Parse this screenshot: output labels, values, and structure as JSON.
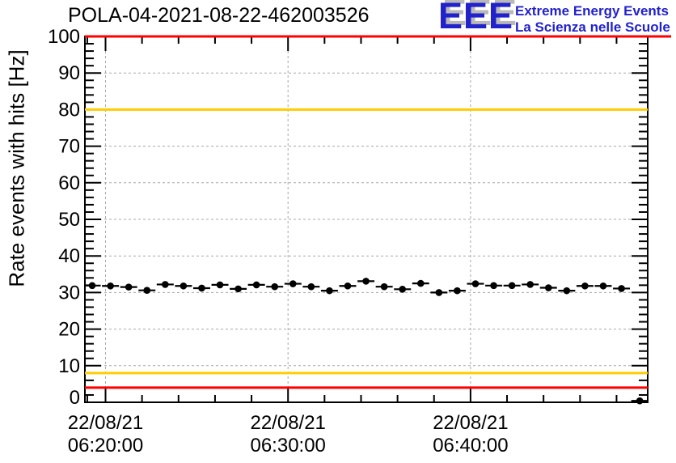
{
  "header": {
    "logo": {
      "acronym": "EEE",
      "line1": "Extreme Energy Events",
      "line2": "La Scienza nelle Scuole"
    }
  },
  "colors": {
    "alarm_red": "#ff0000",
    "warning_yellow": "#ffcc00",
    "logo_blue": "#2222cc",
    "grid_gray": "#a8a8a8"
  },
  "chart_data": {
    "type": "scatter",
    "title": "POLA-04-2021-08-22-462003526",
    "xlabel": "",
    "ylabel": "Rate events with hits [Hz]",
    "ylim": [
      0,
      100
    ],
    "grid": true,
    "y_major_ticks": [
      0,
      10,
      20,
      30,
      40,
      50,
      60,
      70,
      80,
      90,
      100
    ],
    "y_minor_step": 2,
    "x_ticks": [
      {
        "date": "22/08/21",
        "time": "06:20:00",
        "offset_min": 0
      },
      {
        "date": "22/08/21",
        "time": "06:30:00",
        "offset_min": 10
      },
      {
        "date": "22/08/21",
        "time": "06:40:00",
        "offset_min": 20
      }
    ],
    "x_minor_marks_min": [
      -1,
      2,
      4,
      6,
      8,
      12,
      14,
      16,
      18,
      22,
      24,
      26,
      28
    ],
    "bin_phase_min": 0.27,
    "thresholds": [
      {
        "value": 100,
        "color": "#ff0000",
        "full_width": true
      },
      {
        "value": 80,
        "color": "#ffcc00",
        "full_width": false
      },
      {
        "value": 8,
        "color": "#ffcc00",
        "full_width": false
      },
      {
        "value": 4,
        "color": "#ff0000",
        "full_width": false
      }
    ],
    "series": [
      {
        "name": "rate-events-with-hits",
        "marker": "filled-circle",
        "color": "#000000",
        "bin_width_min": 1,
        "points": [
          {
            "time": "06:19",
            "value": 31.9
          },
          {
            "time": "06:20",
            "value": 31.8
          },
          {
            "time": "06:21",
            "value": 31.5
          },
          {
            "time": "06:22",
            "value": 30.6
          },
          {
            "time": "06:23",
            "value": 32.2
          },
          {
            "time": "06:24",
            "value": 31.8
          },
          {
            "time": "06:25",
            "value": 31.2
          },
          {
            "time": "06:26",
            "value": 32.1
          },
          {
            "time": "06:27",
            "value": 31.0
          },
          {
            "time": "06:28",
            "value": 32.1
          },
          {
            "time": "06:29",
            "value": 31.6
          },
          {
            "time": "06:30",
            "value": 32.4
          },
          {
            "time": "06:31",
            "value": 31.6
          },
          {
            "time": "06:32",
            "value": 30.5
          },
          {
            "time": "06:33",
            "value": 31.8
          },
          {
            "time": "06:34",
            "value": 33.1
          },
          {
            "time": "06:35",
            "value": 31.6
          },
          {
            "time": "06:36",
            "value": 30.9
          },
          {
            "time": "06:37",
            "value": 32.5
          },
          {
            "time": "06:38",
            "value": 30.0
          },
          {
            "time": "06:39",
            "value": 30.5
          },
          {
            "time": "06:40",
            "value": 32.4
          },
          {
            "time": "06:41",
            "value": 31.9
          },
          {
            "time": "06:42",
            "value": 31.9
          },
          {
            "time": "06:43",
            "value": 32.2
          },
          {
            "time": "06:44",
            "value": 31.3
          },
          {
            "time": "06:45",
            "value": 30.5
          },
          {
            "time": "06:46",
            "value": 31.8
          },
          {
            "time": "06:47",
            "value": 31.8
          },
          {
            "time": "06:48",
            "value": 31.1
          },
          {
            "time": "06:49",
            "value": 0.4
          }
        ]
      }
    ]
  }
}
